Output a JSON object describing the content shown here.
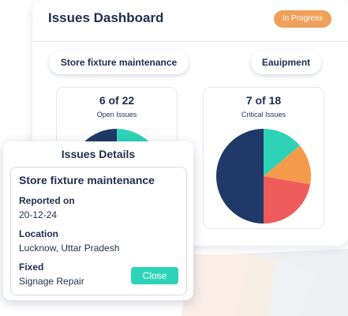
{
  "dashboard": {
    "title": "Issues Dashboard",
    "status": "In Progress",
    "status_color": "#f0a05a",
    "filters": [
      "Store fixture maintenance",
      "Eauipment"
    ]
  },
  "stats": [
    {
      "value": "6 of 22",
      "label": "Open Issues"
    },
    {
      "value": "7 of 18",
      "label": "Critical Issues"
    }
  ],
  "pie_colors": {
    "dark": "#1f3a68",
    "teal": "#2ed3b7",
    "orange": "#f49b4b",
    "red": "#ef5b5b"
  },
  "details": {
    "title": "Issues Details",
    "issue_name": "Store fixture maintenance",
    "reported_label": "Reported on",
    "reported_value": "20-12-24",
    "location_label": "Location",
    "location_value": "Lucknow, Uttar Pradesh",
    "fixed_label": "Fixed",
    "fixed_value": "Signage Repair",
    "close_label": "Close",
    "close_color": "#2ed3b7"
  }
}
